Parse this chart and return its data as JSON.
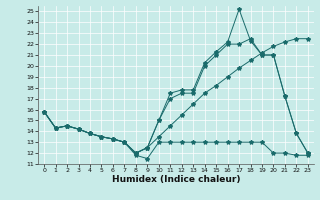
{
  "xlabel": "Humidex (Indice chaleur)",
  "bg_color": "#c8ebe8",
  "line_color": "#1a6b6b",
  "xlim": [
    -0.5,
    23.5
  ],
  "ylim": [
    11,
    25.5
  ],
  "yticks": [
    11,
    12,
    13,
    14,
    15,
    16,
    17,
    18,
    19,
    20,
    21,
    22,
    23,
    24,
    25
  ],
  "xticks": [
    0,
    1,
    2,
    3,
    4,
    5,
    6,
    7,
    8,
    9,
    10,
    11,
    12,
    13,
    14,
    15,
    16,
    17,
    18,
    19,
    20,
    21,
    22,
    23
  ],
  "series": [
    {
      "x": [
        0,
        1,
        2,
        3,
        4,
        5,
        6,
        7,
        8,
        9,
        10,
        11,
        12,
        13,
        14,
        15,
        16,
        17,
        18,
        19,
        20,
        21,
        22,
        23
      ],
      "y": [
        15.8,
        14.3,
        14.5,
        14.2,
        13.8,
        13.5,
        13.3,
        13.0,
        11.8,
        11.5,
        13.0,
        13.0,
        13.0,
        13.0,
        13.0,
        13.0,
        13.0,
        13.0,
        13.0,
        13.0,
        12.0,
        12.0,
        11.8,
        11.8
      ]
    },
    {
      "x": [
        0,
        1,
        2,
        3,
        4,
        5,
        6,
        7,
        8,
        9,
        10,
        11,
        12,
        13,
        14,
        15,
        16,
        17,
        18,
        19,
        20,
        21,
        22,
        23
      ],
      "y": [
        15.8,
        14.3,
        14.5,
        14.2,
        13.8,
        13.5,
        13.3,
        13.0,
        12.0,
        12.5,
        15.0,
        17.5,
        17.8,
        17.8,
        20.3,
        21.3,
        22.2,
        25.2,
        22.3,
        21.0,
        21.0,
        17.2,
        13.8,
        12.0
      ]
    },
    {
      "x": [
        0,
        1,
        2,
        3,
        4,
        5,
        6,
        7,
        8,
        9,
        10,
        11,
        12,
        13,
        14,
        15,
        16,
        17,
        18,
        19,
        20,
        21,
        22,
        23
      ],
      "y": [
        15.8,
        14.3,
        14.5,
        14.2,
        13.8,
        13.5,
        13.3,
        13.0,
        12.0,
        12.5,
        15.0,
        17.0,
        17.5,
        17.5,
        20.0,
        21.0,
        22.0,
        22.0,
        22.5,
        21.0,
        21.0,
        17.2,
        13.8,
        12.0
      ]
    },
    {
      "x": [
        0,
        1,
        2,
        3,
        4,
        5,
        6,
        7,
        8,
        9,
        10,
        11,
        12,
        13,
        14,
        15,
        16,
        17,
        18,
        19,
        20,
        21,
        22,
        23
      ],
      "y": [
        15.8,
        14.3,
        14.5,
        14.2,
        13.8,
        13.5,
        13.3,
        13.0,
        12.0,
        12.5,
        13.5,
        14.5,
        15.5,
        16.5,
        17.5,
        18.2,
        19.0,
        19.8,
        20.5,
        21.2,
        21.8,
        22.2,
        22.5,
        22.5
      ]
    }
  ]
}
